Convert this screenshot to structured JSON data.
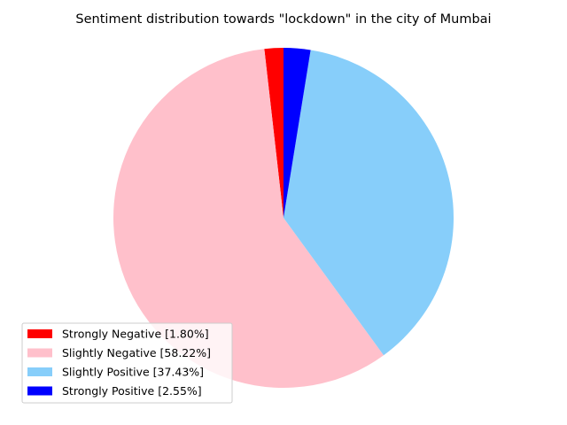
{
  "chart_data": {
    "type": "pie",
    "title": "Sentiment distribution towards \"lockdown\" in the city of Mumbai",
    "start_angle_deg": 90,
    "direction": "counterclockwise",
    "legend_position": "lower-left",
    "slices": [
      {
        "label": "Strongly Negative [1.80%]",
        "value": 1.8,
        "color": "#ff0000"
      },
      {
        "label": "Slightly Negative [58.22%]",
        "value": 58.22,
        "color": "#ffc0cb"
      },
      {
        "label": "Slightly Positive [37.43%]",
        "value": 37.43,
        "color": "#87cefa"
      },
      {
        "label": "Strongly Positive [2.55%]",
        "value": 2.55,
        "color": "#0000ff"
      }
    ]
  }
}
